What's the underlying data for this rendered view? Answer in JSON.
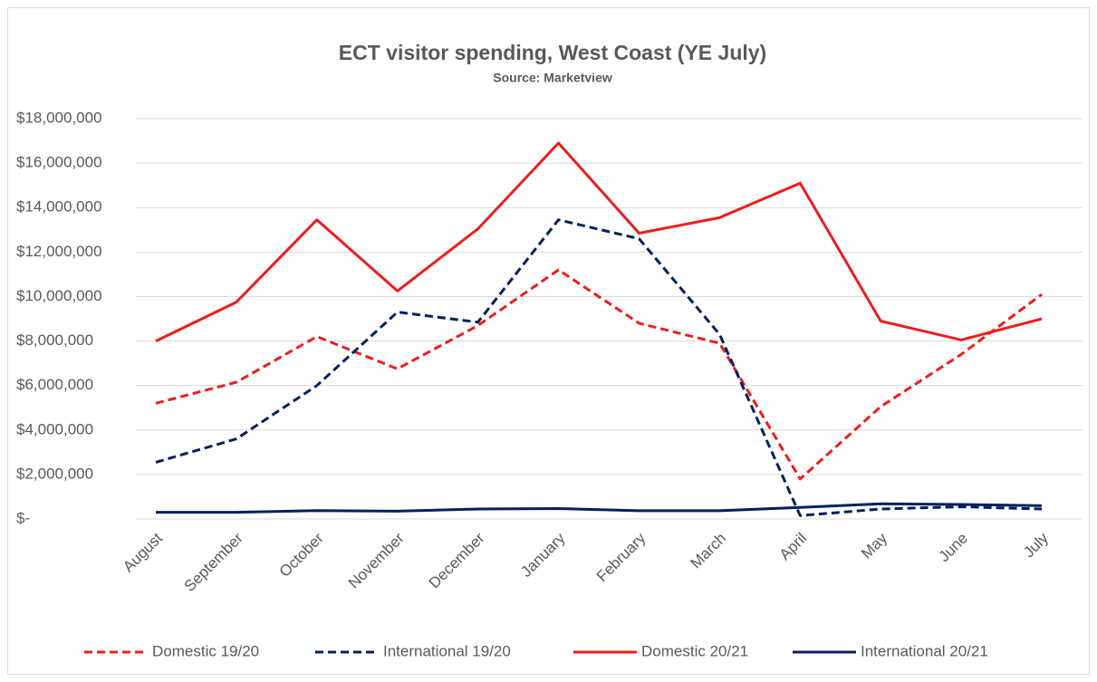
{
  "chart_data": {
    "type": "line",
    "title": "ECT visitor spending, West Coast (YE July)",
    "subtitle": "Source: Marketview",
    "categories": [
      "August",
      "September",
      "October",
      "November",
      "December",
      "January",
      "February",
      "March",
      "April",
      "May",
      "June",
      "July"
    ],
    "series": [
      {
        "name": "Domestic 19/20",
        "color": "#ee1c1c",
        "dashed": true,
        "values": [
          5200000,
          6150000,
          8200000,
          6750000,
          8700000,
          11200000,
          8800000,
          7900000,
          1800000,
          5050000,
          7400000,
          10100000
        ]
      },
      {
        "name": "International 19/20",
        "color": "#002060",
        "dashed": true,
        "values": [
          2550000,
          3600000,
          6000000,
          9300000,
          8850000,
          13450000,
          12600000,
          8300000,
          150000,
          450000,
          550000,
          450000
        ]
      },
      {
        "name": "Domestic 20/21",
        "color": "#ee1c1c",
        "dashed": false,
        "values": [
          8000000,
          9750000,
          13450000,
          10250000,
          13050000,
          16900000,
          12850000,
          13550000,
          15100000,
          8900000,
          8050000,
          9000000
        ]
      },
      {
        "name": "International 20/21",
        "color": "#002060",
        "dashed": false,
        "values": [
          300000,
          300000,
          380000,
          350000,
          450000,
          470000,
          370000,
          370000,
          520000,
          680000,
          650000,
          600000
        ]
      }
    ],
    "ylim": [
      0,
      18000000
    ],
    "yticks": [
      {
        "value": 0,
        "label": "$-"
      },
      {
        "value": 2000000,
        "label": "$2,000,000"
      },
      {
        "value": 4000000,
        "label": "$4,000,000"
      },
      {
        "value": 6000000,
        "label": "$6,000,000"
      },
      {
        "value": 8000000,
        "label": "$8,000,000"
      },
      {
        "value": 10000000,
        "label": "$10,000,000"
      },
      {
        "value": 12000000,
        "label": "$12,000,000"
      },
      {
        "value": 14000000,
        "label": "$14,000,000"
      },
      {
        "value": 16000000,
        "label": "$16,000,000"
      },
      {
        "value": 18000000,
        "label": "$18,000,000"
      }
    ],
    "grid": true,
    "legend": "bottom"
  }
}
